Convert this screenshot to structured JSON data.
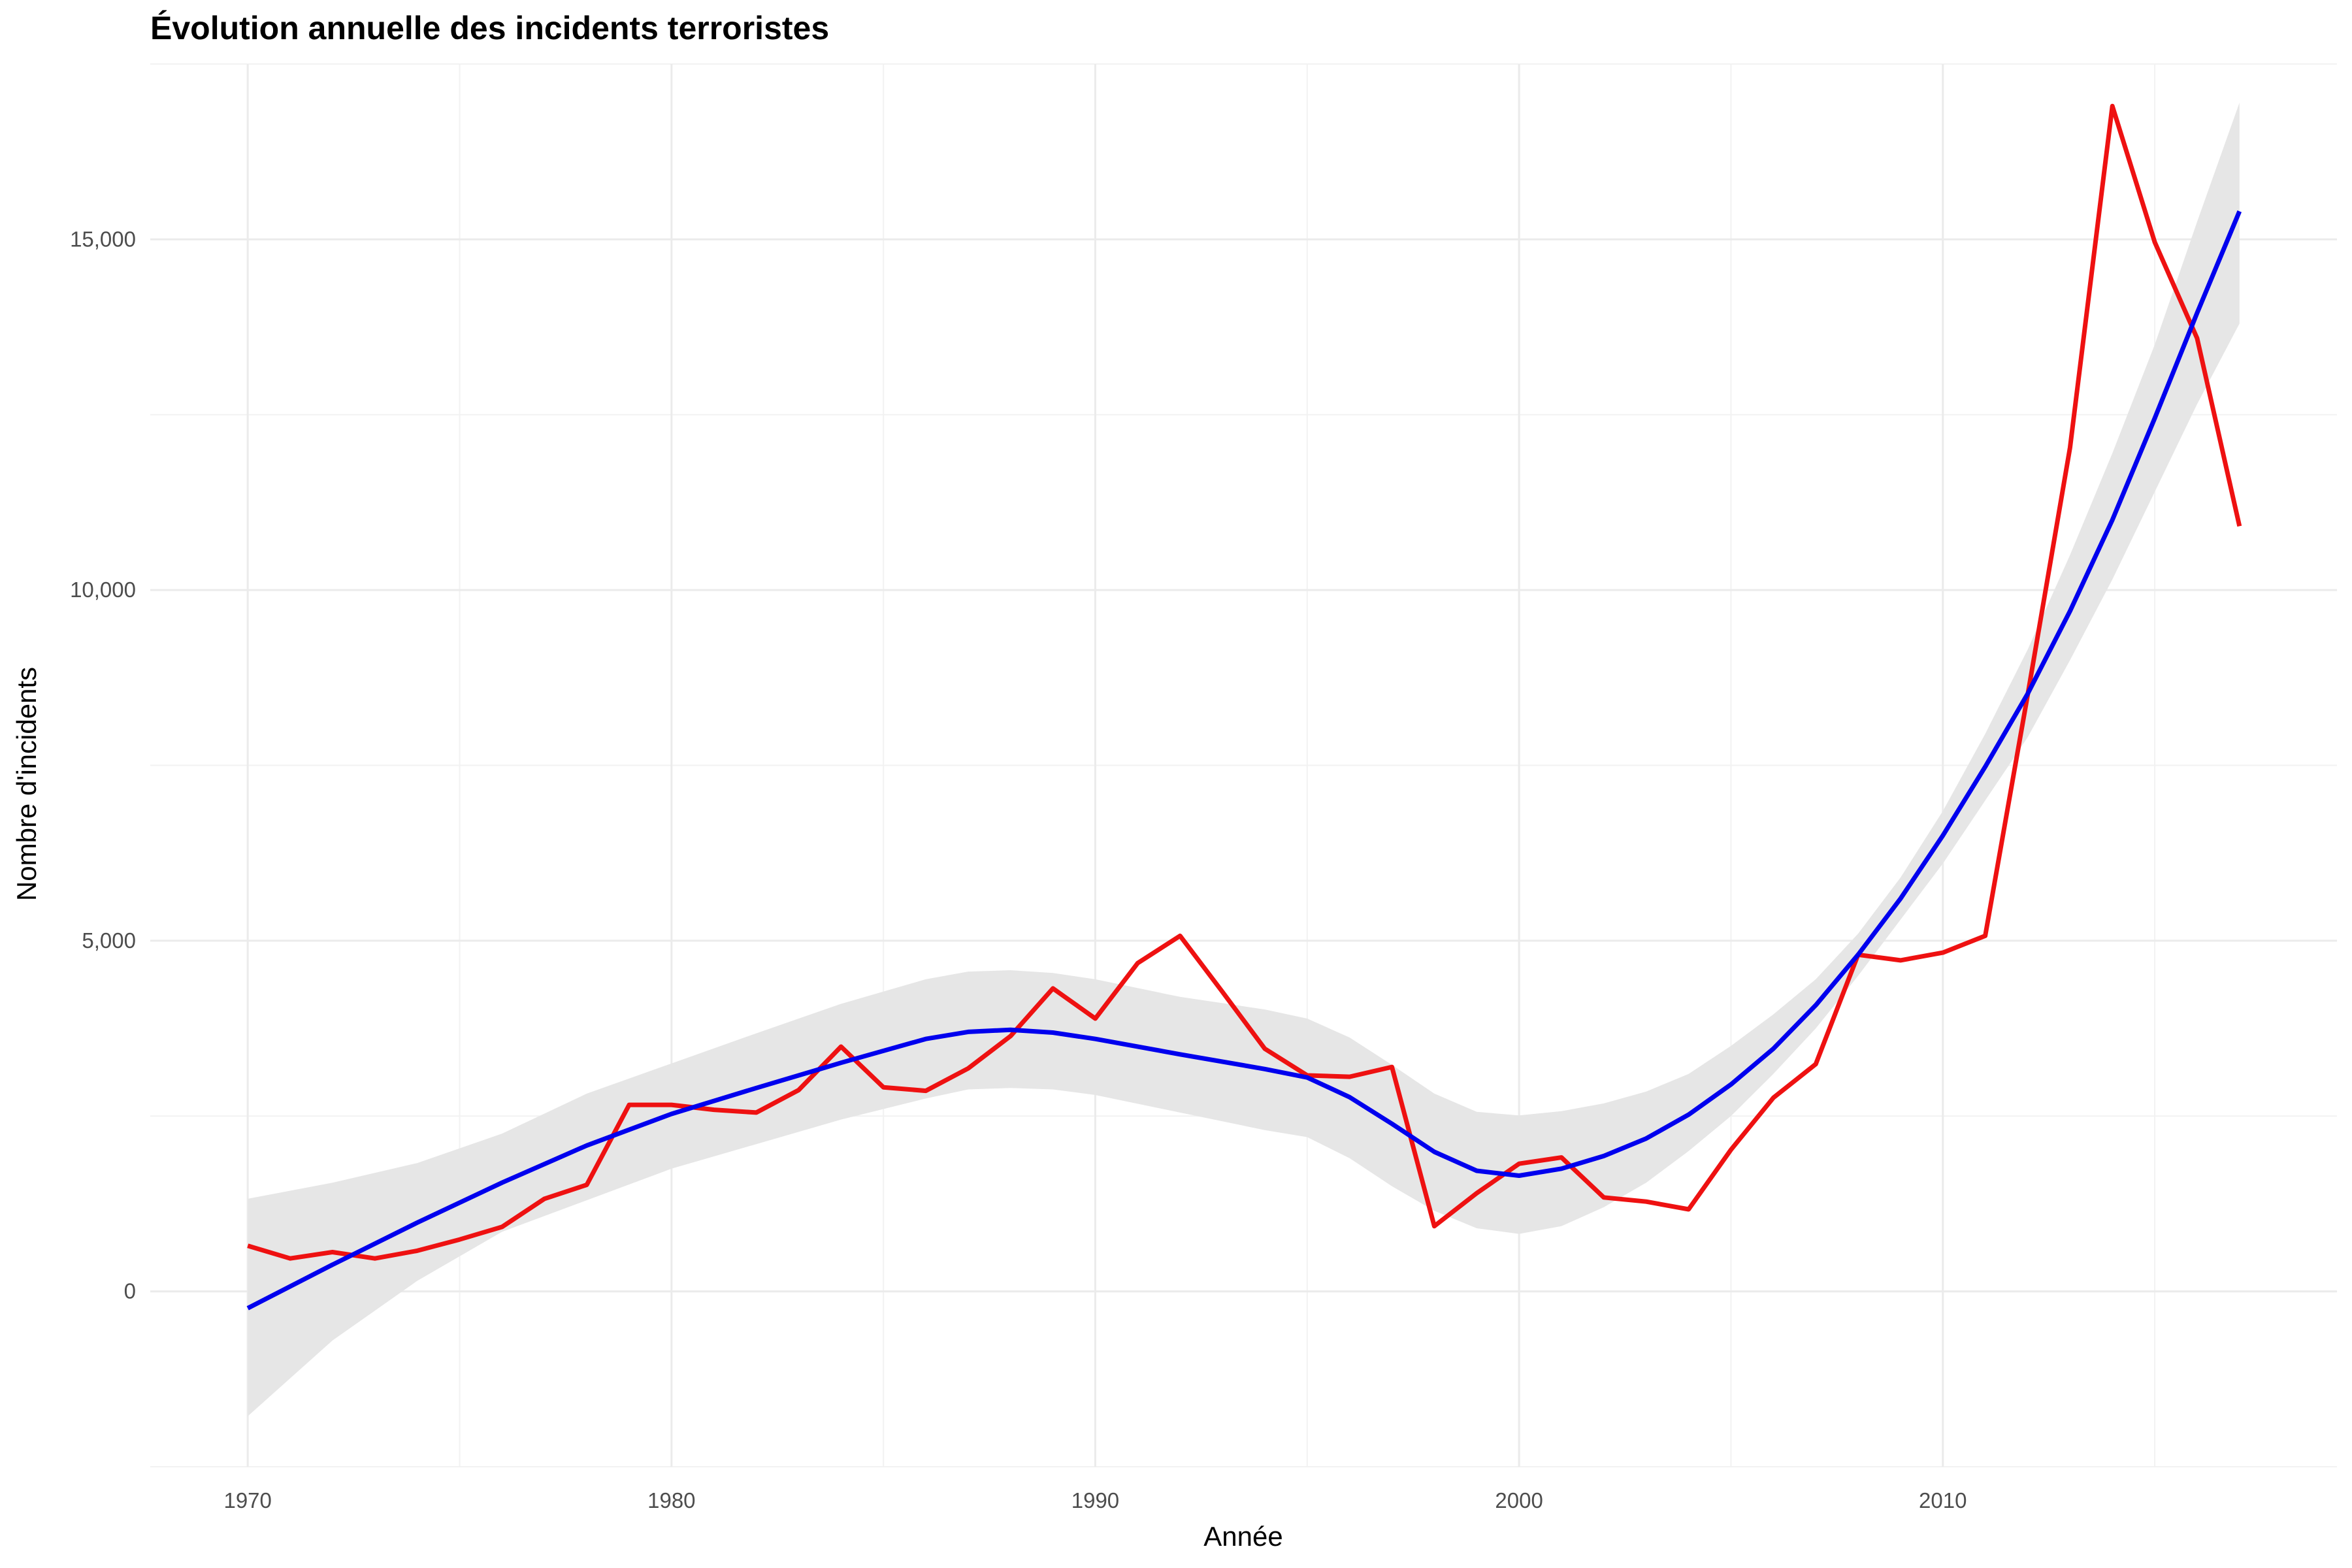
{
  "chart_data": {
    "type": "line",
    "title": "Évolution annuelle des incidents terroristes",
    "xlabel": "Année",
    "ylabel": "Nombre d'incidents",
    "xlim": [
      1967.7,
      2019.3
    ],
    "ylim": [
      -2500,
      17500
    ],
    "x_ticks": [
      1970,
      1980,
      1990,
      2000,
      2010
    ],
    "x_tick_labels": [
      "1970",
      "1980",
      "1990",
      "2000",
      "2010"
    ],
    "y_ticks": [
      0,
      5000,
      10000,
      15000
    ],
    "y_tick_labels": [
      "0",
      "5,000",
      "10,000",
      "15,000"
    ],
    "grid": true,
    "colors": {
      "observed": "#ee1111",
      "smooth": "#0000ee",
      "ribbon": "#e6e6e6"
    },
    "series": [
      {
        "x": [
          1970,
          1971,
          1972,
          1973,
          1974,
          1975,
          1976,
          1977,
          1978,
          1979,
          1980,
          1981,
          1982,
          1983,
          1984,
          1985,
          1986,
          1987,
          1988,
          1989,
          1990,
          1991,
          1992,
          1993,
          1994,
          1995,
          1996,
          1997,
          1998,
          1999,
          2000,
          2001,
          2002,
          2003,
          2004,
          2005,
          2006,
          2007,
          2008,
          2009,
          2010,
          2011,
          2012,
          2013,
          2014,
          2015,
          2016,
          2017
        ],
        "values": [
          650,
          470,
          560,
          470,
          580,
          740,
          920,
          1320,
          1520,
          2660,
          2660,
          2590,
          2550,
          2870,
          3490,
          2910,
          2860,
          3180,
          3640,
          4320,
          3890,
          4680,
          5070,
          4270,
          3460,
          3080,
          3060,
          3200,
          930,
          1400,
          1820,
          1910,
          1340,
          1280,
          1170,
          2020,
          2760,
          3240,
          4800,
          4720,
          4830,
          5070,
          8500,
          12030,
          16900,
          14960,
          13590,
          10910
        ]
      },
      {
        "x": [
          1970,
          1972,
          1974,
          1976,
          1978,
          1980,
          1982,
          1984,
          1986,
          1987,
          1988,
          1989,
          1990,
          1992,
          1994,
          1995,
          1996,
          1997,
          1998,
          1999,
          2000,
          2001,
          2002,
          2003,
          2004,
          2005,
          2006,
          2007,
          2008,
          2009,
          2010,
          2011,
          2012,
          2013,
          2014,
          2015,
          2016,
          2017
        ],
        "values": [
          -240,
          380,
          980,
          1550,
          2080,
          2530,
          2900,
          3260,
          3600,
          3700,
          3730,
          3690,
          3600,
          3380,
          3170,
          3050,
          2770,
          2390,
          1990,
          1720,
          1650,
          1750,
          1930,
          2180,
          2520,
          2950,
          3460,
          4080,
          4800,
          5600,
          6500,
          7480,
          8520,
          9700,
          11000,
          12450,
          13950,
          15400
        ]
      },
      {
        "x": [
          1970,
          1972,
          1974,
          1976,
          1978,
          1980,
          1982,
          1984,
          1986,
          1987,
          1988,
          1989,
          1990,
          1992,
          1994,
          1995,
          1996,
          1997,
          1998,
          1999,
          2000,
          2001,
          2002,
          2003,
          2004,
          2005,
          2006,
          2007,
          2008,
          2009,
          2010,
          2011,
          2012,
          2013,
          2014,
          2015,
          2016,
          2017
        ],
        "lower": [
          -1780,
          -700,
          150,
          850,
          1300,
          1750,
          2100,
          2450,
          2750,
          2880,
          2900,
          2880,
          2800,
          2550,
          2300,
          2200,
          1900,
          1500,
          1150,
          900,
          820,
          930,
          1200,
          1550,
          2000,
          2500,
          3100,
          3750,
          4500,
          5300,
          6100,
          7000,
          7900,
          9000,
          10150,
          11400,
          12650,
          13800
        ],
        "upper": [
          1320,
          1550,
          1830,
          2250,
          2820,
          3250,
          3680,
          4100,
          4450,
          4560,
          4580,
          4540,
          4450,
          4200,
          4020,
          3890,
          3620,
          3230,
          2820,
          2560,
          2510,
          2570,
          2680,
          2850,
          3100,
          3500,
          3950,
          4450,
          5100,
          5900,
          6850,
          7950,
          9150,
          10500,
          11950,
          13500,
          15250,
          16950
        ]
      }
    ]
  }
}
